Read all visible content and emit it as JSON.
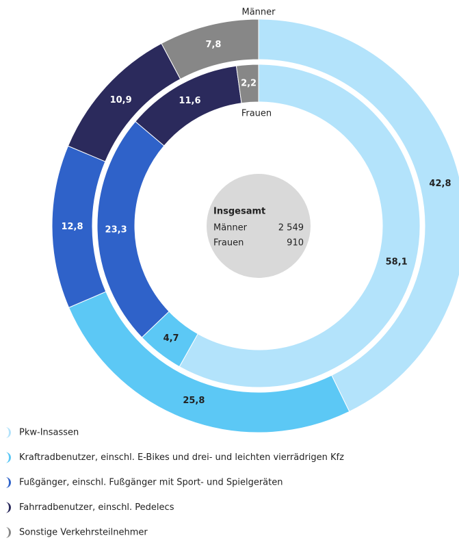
{
  "chart_data": {
    "type": "donut",
    "categories": [
      "Pkw-Insassen",
      "Kraftradbenutzer, einschl. E-Bikes und drei- und leichten vierrädrigen Kfz",
      "Fußgänger, einschl. Fußgänger mit Sport- und Spielgeräten",
      "Fahrradbenutzer, einschl. Pedelecs",
      "Sonstige Verkehrsteilnehmer"
    ],
    "colors": [
      "#b3e3fb",
      "#5cc8f5",
      "#2f62c9",
      "#2b2a5c",
      "#878787"
    ],
    "label_colors": [
      "#222222",
      "#222222",
      "#ffffff",
      "#ffffff",
      "#ffffff"
    ],
    "center_title": "Insgesamt",
    "series": [
      {
        "name": "Männer",
        "values": [
          42.8,
          25.8,
          12.8,
          10.9,
          7.8
        ],
        "value_labels": [
          "42,8",
          "25,8",
          "12,8",
          "10,9",
          "7,8"
        ],
        "total": 2549,
        "total_label": "2 549"
      },
      {
        "name": "Frauen",
        "values": [
          58.1,
          4.7,
          23.3,
          11.6,
          2.2
        ],
        "value_labels": [
          "58,1",
          "4,7",
          "23,3",
          "11,6",
          "2,2"
        ],
        "total": 910,
        "total_label": "910"
      }
    ]
  }
}
